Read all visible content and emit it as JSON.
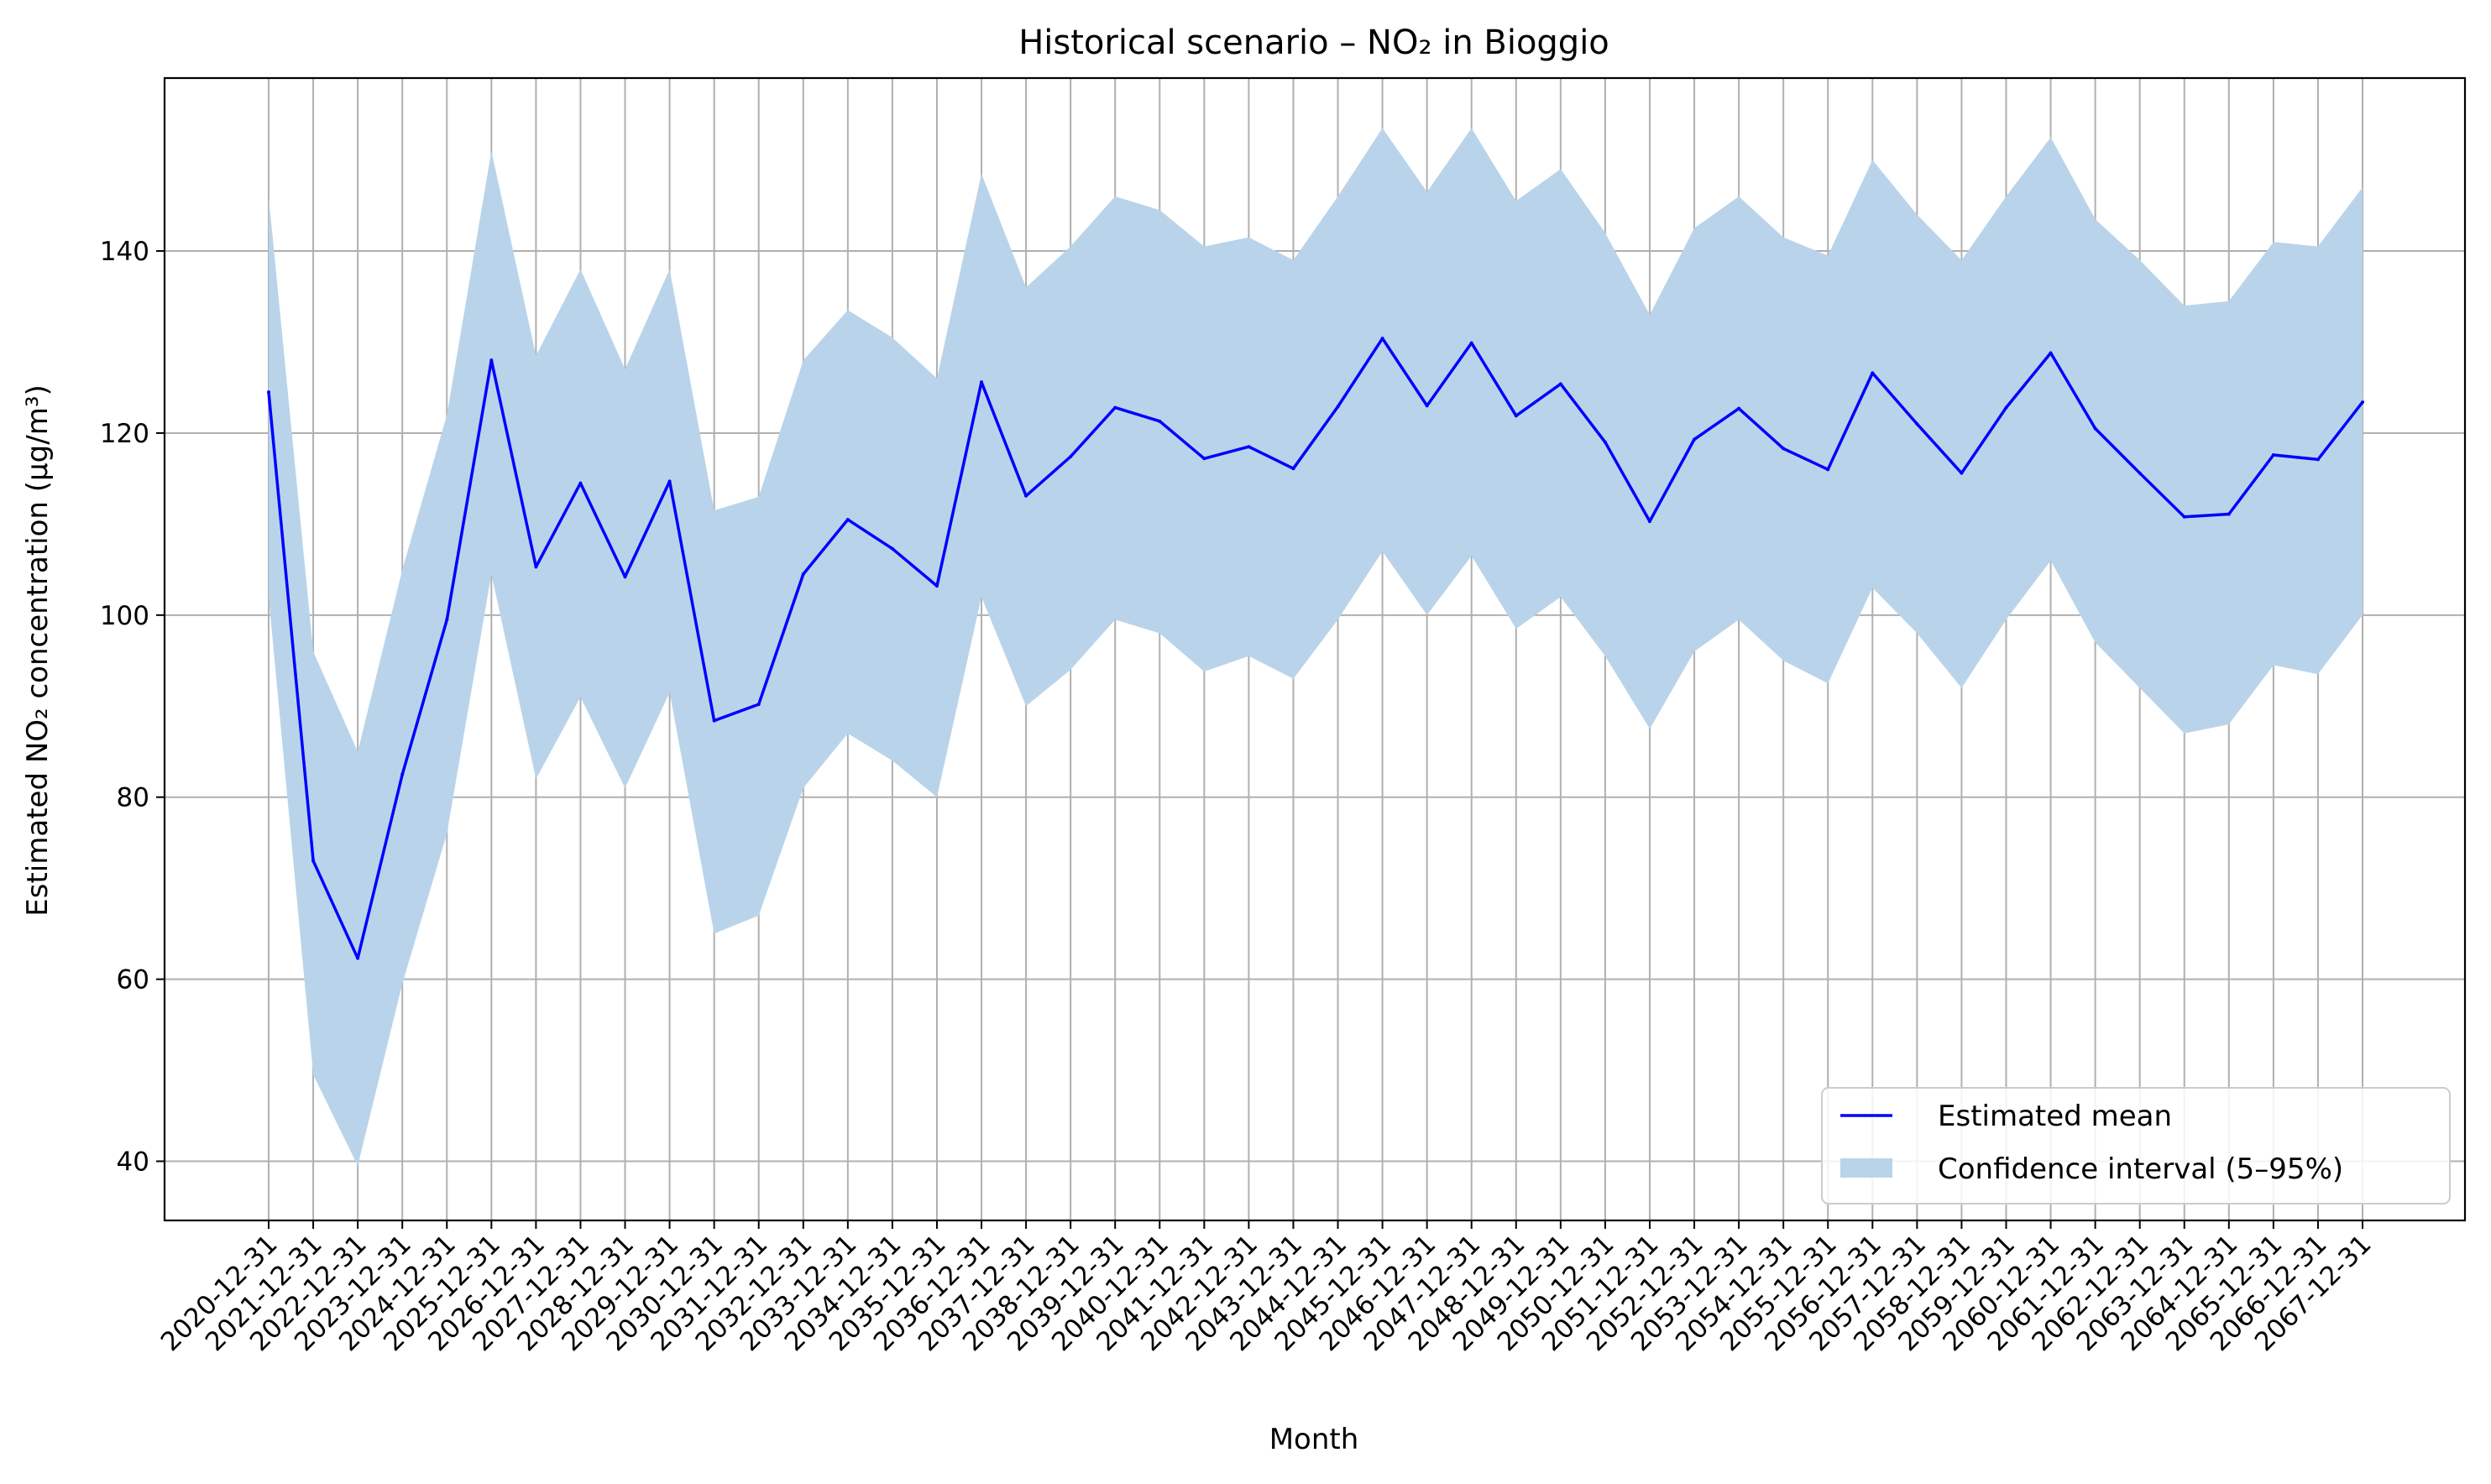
{
  "chart_data": {
    "type": "line",
    "title": "Historical scenario – NO₂ in Bioggio",
    "xlabel": "Month",
    "ylabel": "Estimated NO₂ concentration (µg/m³)",
    "ylim": [
      33.5,
      159
    ],
    "yticks": [
      40,
      60,
      80,
      100,
      120,
      140
    ],
    "grid": true,
    "legend_position": "bottom-right",
    "x": [
      "2020-12-31",
      "2021-12-31",
      "2022-12-31",
      "2023-12-31",
      "2024-12-31",
      "2025-12-31",
      "2026-12-31",
      "2027-12-31",
      "2028-12-31",
      "2029-12-31",
      "2030-12-31",
      "2031-12-31",
      "2032-12-31",
      "2033-12-31",
      "2034-12-31",
      "2035-12-31",
      "2036-12-31",
      "2037-12-31",
      "2038-12-31",
      "2039-12-31",
      "2040-12-31",
      "2041-12-31",
      "2042-12-31",
      "2043-12-31",
      "2044-12-31",
      "2045-12-31",
      "2046-12-31",
      "2047-12-31",
      "2048-12-31",
      "2049-12-31",
      "2050-12-31",
      "2051-12-31",
      "2052-12-31",
      "2053-12-31",
      "2054-12-31",
      "2055-12-31",
      "2056-12-31",
      "2057-12-31",
      "2058-12-31",
      "2059-12-31",
      "2060-12-31",
      "2061-12-31",
      "2062-12-31",
      "2063-12-31",
      "2064-12-31",
      "2065-12-31",
      "2066-12-31",
      "2067-12-31"
    ],
    "series": [
      {
        "name": "Estimated mean",
        "color": "#0000ff",
        "values": [
          124.5,
          73.0,
          62.3,
          82.5,
          99.5,
          128.0,
          105.3,
          114.5,
          104.2,
          114.7,
          88.4,
          90.2,
          104.5,
          110.5,
          107.3,
          103.2,
          125.6,
          113.1,
          117.4,
          122.8,
          121.3,
          117.2,
          118.5,
          116.1,
          122.9,
          130.4,
          123.0,
          129.9,
          121.9,
          125.4,
          119.0,
          110.3,
          119.3,
          122.7,
          118.3,
          116.0,
          126.6,
          121.0,
          115.6,
          122.8,
          128.8,
          120.5,
          115.6,
          110.8,
          111.1,
          117.6,
          117.1,
          123.4
        ]
      }
    ],
    "band": {
      "name": "Confidence interval (5–95%)",
      "color": "#b9d4ea",
      "lower": [
        102.0,
        49.5,
        39.5,
        59.5,
        76.0,
        104.5,
        82.0,
        91.0,
        81.0,
        91.5,
        65.0,
        67.0,
        81.0,
        87.0,
        84.0,
        80.0,
        102.0,
        90.0,
        94.0,
        99.5,
        98.0,
        93.8,
        95.5,
        93.0,
        99.5,
        107.0,
        100.0,
        106.5,
        98.5,
        102.0,
        95.5,
        87.5,
        96.0,
        99.5,
        95.0,
        92.5,
        103.0,
        98.0,
        92.0,
        99.5,
        106.0,
        97.0,
        92.0,
        87.0,
        88.0,
        94.5,
        93.5,
        100.0
      ],
      "upper": [
        146.0,
        96.0,
        85.0,
        105.0,
        122.0,
        151.0,
        128.5,
        138.0,
        127.0,
        138.0,
        111.5,
        113.0,
        128.0,
        133.5,
        130.5,
        126.0,
        148.5,
        136.0,
        140.5,
        146.0,
        144.5,
        140.5,
        141.5,
        139.0,
        146.0,
        153.5,
        146.5,
        153.5,
        145.5,
        149.0,
        142.0,
        133.0,
        142.5,
        146.0,
        141.5,
        139.5,
        150.0,
        144.0,
        139.0,
        146.0,
        152.5,
        143.5,
        139.0,
        134.0,
        134.5,
        141.0,
        140.5,
        147.0
      ]
    }
  }
}
